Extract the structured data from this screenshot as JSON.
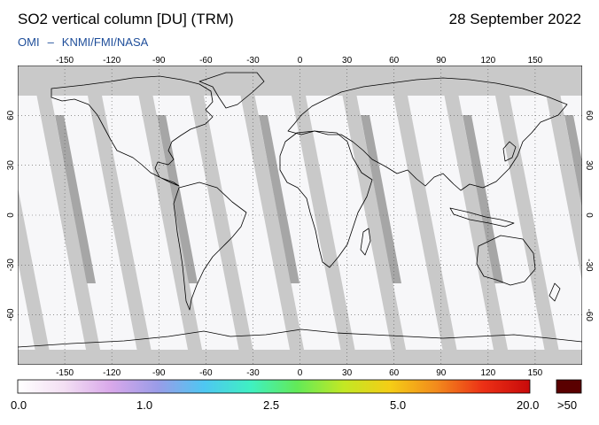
{
  "header": {
    "title": "SO2 vertical column [DU] (TRM)",
    "date": "28 September 2022",
    "instrument": "OMI",
    "separator": "–",
    "source": "KNMI/FMI/NASA"
  },
  "map": {
    "lon_ticks": [
      "-150",
      "-120",
      "-90",
      "-60",
      "-30",
      "0",
      "30",
      "60",
      "90",
      "120",
      "150"
    ],
    "lon_tick_values": [
      -150,
      -120,
      -90,
      -60,
      -30,
      0,
      30,
      60,
      90,
      120,
      150
    ],
    "lat_ticks": [
      "60",
      "30",
      "0",
      "-30",
      "-60"
    ],
    "lat_tick_values": [
      60,
      30,
      0,
      -30,
      -60
    ],
    "lon_range": [
      -180,
      180
    ],
    "lat_range": [
      -90,
      90
    ],
    "colors": {
      "background": "#f7f7f9",
      "no_data": "#c9c9c9",
      "overlap": "#a6a6a6",
      "coast": "#000000"
    }
  },
  "colorbar": {
    "labels": [
      "0.0",
      "1.0",
      "2.5",
      "5.0",
      "20.0"
    ],
    "overflow_label": ">50",
    "colors": [
      "#ffffff",
      "#f3dff3",
      "#d9a8ea",
      "#9a9ce8",
      "#4ec7f2",
      "#3ff0c2",
      "#62ea58",
      "#c2e824",
      "#f5cd16",
      "#f28a1c",
      "#ec3016",
      "#c80a0a"
    ],
    "overflow_color": "#5a0000"
  }
}
